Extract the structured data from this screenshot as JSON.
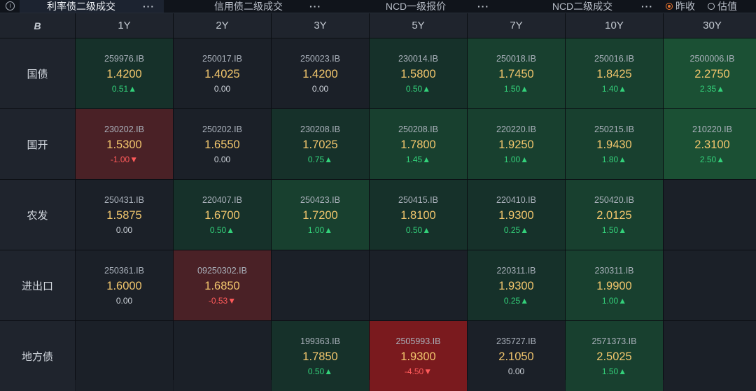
{
  "tabs": [
    {
      "label": "利率债二级成交",
      "active": true
    },
    {
      "label": "信用债二级成交",
      "active": false
    },
    {
      "label": "NCD一级报价",
      "active": false
    },
    {
      "label": "NCD二级成交",
      "active": false
    }
  ],
  "radio": {
    "options": [
      "昨收",
      "估值"
    ],
    "selected": 0
  },
  "corner": "B",
  "columns": [
    "1Y",
    "2Y",
    "3Y",
    "5Y",
    "7Y",
    "10Y",
    "30Y"
  ],
  "rows": [
    {
      "label": "国债",
      "cells": [
        {
          "code": "259976.IB",
          "yield": "1.4200",
          "change": "0.51▲",
          "dir": "up",
          "shade": "g1"
        },
        {
          "code": "250017.IB",
          "yield": "1.4025",
          "change": "0.00",
          "dir": "flat",
          "shade": ""
        },
        {
          "code": "250023.IB",
          "yield": "1.4200",
          "change": "0.00",
          "dir": "flat",
          "shade": ""
        },
        {
          "code": "230014.IB",
          "yield": "1.5800",
          "change": "0.50▲",
          "dir": "up",
          "shade": "g1"
        },
        {
          "code": "250018.IB",
          "yield": "1.7450",
          "change": "1.50▲",
          "dir": "up",
          "shade": "g2"
        },
        {
          "code": "250016.IB",
          "yield": "1.8425",
          "change": "1.40▲",
          "dir": "up",
          "shade": "g2"
        },
        {
          "code": "2500006.IB",
          "yield": "2.2750",
          "change": "2.35▲",
          "dir": "up",
          "shade": "g3"
        }
      ]
    },
    {
      "label": "国开",
      "cells": [
        {
          "code": "230202.IB",
          "yield": "1.5300",
          "change": "-1.00▼",
          "dir": "down",
          "shade": "r1"
        },
        {
          "code": "250202.IB",
          "yield": "1.6550",
          "change": "0.00",
          "dir": "flat",
          "shade": ""
        },
        {
          "code": "230208.IB",
          "yield": "1.7025",
          "change": "0.75▲",
          "dir": "up",
          "shade": "g1"
        },
        {
          "code": "250208.IB",
          "yield": "1.7800",
          "change": "1.45▲",
          "dir": "up",
          "shade": "g2"
        },
        {
          "code": "220220.IB",
          "yield": "1.9250",
          "change": "1.00▲",
          "dir": "up",
          "shade": "g2"
        },
        {
          "code": "250215.IB",
          "yield": "1.9430",
          "change": "1.80▲",
          "dir": "up",
          "shade": "g2"
        },
        {
          "code": "210220.IB",
          "yield": "2.3100",
          "change": "2.50▲",
          "dir": "up",
          "shade": "g3"
        }
      ]
    },
    {
      "label": "农发",
      "cells": [
        {
          "code": "250431.IB",
          "yield": "1.5875",
          "change": "0.00",
          "dir": "flat",
          "shade": ""
        },
        {
          "code": "220407.IB",
          "yield": "1.6700",
          "change": "0.50▲",
          "dir": "up",
          "shade": "g1"
        },
        {
          "code": "250423.IB",
          "yield": "1.7200",
          "change": "1.00▲",
          "dir": "up",
          "shade": "g2"
        },
        {
          "code": "250415.IB",
          "yield": "1.8100",
          "change": "0.50▲",
          "dir": "up",
          "shade": "g1"
        },
        {
          "code": "220410.IB",
          "yield": "1.9300",
          "change": "0.25▲",
          "dir": "up",
          "shade": "g1"
        },
        {
          "code": "250420.IB",
          "yield": "2.0125",
          "change": "1.50▲",
          "dir": "up",
          "shade": "g2"
        },
        null
      ]
    },
    {
      "label": "进出口",
      "cells": [
        {
          "code": "250361.IB",
          "yield": "1.6000",
          "change": "0.00",
          "dir": "flat",
          "shade": ""
        },
        {
          "code": "09250302.IB",
          "yield": "1.6850",
          "change": "-0.53▼",
          "dir": "down",
          "shade": "r1"
        },
        null,
        null,
        {
          "code": "220311.IB",
          "yield": "1.9300",
          "change": "0.25▲",
          "dir": "up",
          "shade": "g1"
        },
        {
          "code": "230311.IB",
          "yield": "1.9900",
          "change": "1.00▲",
          "dir": "up",
          "shade": "g2"
        },
        null
      ]
    },
    {
      "label": "地方债",
      "cells": [
        null,
        null,
        {
          "code": "199363.IB",
          "yield": "1.7850",
          "change": "0.50▲",
          "dir": "up",
          "shade": "g1"
        },
        {
          "code": "2505993.IB",
          "yield": "1.9300",
          "change": "-4.50▼",
          "dir": "down",
          "shade": "r2"
        },
        {
          "code": "235727.IB",
          "yield": "2.1050",
          "change": "0.00",
          "dir": "flat",
          "shade": ""
        },
        {
          "code": "2571373.IB",
          "yield": "2.5025",
          "change": "1.50▲",
          "dir": "up",
          "shade": "g2"
        },
        null
      ]
    }
  ]
}
